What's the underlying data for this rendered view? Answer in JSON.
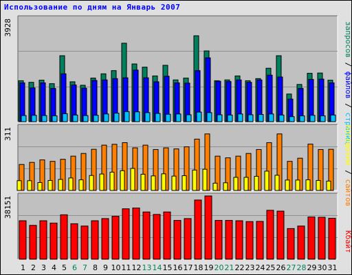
{
  "title": "Использование по дням на Январь 2007",
  "colors": {
    "background": "#e0e0e0",
    "plot": "#c0c0c0",
    "grid": "#909090",
    "hits": "#00805c",
    "files": "#0000ff",
    "pages": "#00c0ff",
    "visits": "#ff8000",
    "sites": "#ffff00",
    "kbytes": "#ff0000",
    "weekend_label": "#00805c",
    "weekday_label": "#000000"
  },
  "chart_data": [
    {
      "type": "bar",
      "categories": [
        "1",
        "2",
        "3",
        "4",
        "5",
        "6",
        "7",
        "8",
        "9",
        "10",
        "11",
        "12",
        "13",
        "14",
        "15",
        "16",
        "17",
        "18",
        "19",
        "20",
        "21",
        "22",
        "23",
        "24",
        "25",
        "26",
        "27",
        "28",
        "29",
        "30",
        "31"
      ],
      "weekend_days": [
        "6",
        "7",
        "13",
        "14",
        "20",
        "21",
        "27",
        "28"
      ],
      "ymax_label": "3928",
      "ylim": [
        0,
        3928
      ],
      "series": [
        {
          "name": "запросов",
          "values": [
            1540,
            1480,
            1560,
            1430,
            2480,
            1500,
            1370,
            1640,
            1800,
            1920,
            2950,
            2170,
            2050,
            1720,
            2120,
            1570,
            1640,
            3230,
            2660,
            1540,
            1570,
            1720,
            1540,
            1620,
            2010,
            2480,
            1040,
            1400,
            1820,
            1830,
            1560
          ]
        },
        {
          "name": "файлов",
          "values": [
            1460,
            1270,
            1460,
            1250,
            1800,
            1380,
            1260,
            1550,
            1570,
            1620,
            1650,
            1940,
            1650,
            1500,
            1710,
            1460,
            1450,
            1920,
            2400,
            1520,
            1510,
            1570,
            1480,
            1570,
            1750,
            1680,
            850,
            1250,
            1590,
            1600,
            1460
          ]
        },
        {
          "name": "страниц",
          "values": [
            230,
            240,
            230,
            220,
            300,
            250,
            230,
            240,
            290,
            320,
            380,
            370,
            340,
            310,
            280,
            290,
            260,
            360,
            340,
            260,
            250,
            290,
            260,
            270,
            290,
            250,
            190,
            220,
            240,
            220,
            250
          ]
        }
      ]
    },
    {
      "type": "bar",
      "categories": [
        "1",
        "2",
        "3",
        "4",
        "5",
        "6",
        "7",
        "8",
        "9",
        "10",
        "11",
        "12",
        "13",
        "14",
        "15",
        "16",
        "17",
        "18",
        "19",
        "20",
        "21",
        "22",
        "23",
        "24",
        "25",
        "26",
        "27",
        "28",
        "29",
        "30",
        "31"
      ],
      "ymax_label": "311",
      "ylim": [
        0,
        311
      ],
      "series": [
        {
          "name": "сайтов",
          "values": [
            125,
            135,
            147,
            140,
            150,
            165,
            178,
            198,
            218,
            222,
            230,
            205,
            218,
            197,
            205,
            200,
            210,
            247,
            272,
            165,
            157,
            165,
            178,
            197,
            230,
            272,
            140,
            155,
            223,
            197,
            198
          ]
        },
        {
          "name": "посещений",
          "values": [
            47,
            47,
            38,
            48,
            53,
            60,
            51,
            72,
            79,
            88,
            95,
            106,
            78,
            70,
            80,
            69,
            71,
            98,
            102,
            35,
            37,
            63,
            63,
            68,
            93,
            73,
            50,
            50,
            51,
            48,
            45
          ]
        }
      ]
    },
    {
      "type": "bar",
      "categories": [
        "1",
        "2",
        "3",
        "4",
        "5",
        "6",
        "7",
        "8",
        "9",
        "10",
        "11",
        "12",
        "13",
        "14",
        "15",
        "16",
        "17",
        "18",
        "19",
        "20",
        "21",
        "22",
        "23",
        "24",
        "25",
        "26",
        "27",
        "28",
        "29",
        "30",
        "31"
      ],
      "ymax_label": "38151",
      "ylim": [
        0,
        38151
      ],
      "series": [
        {
          "name": "Кбайт",
          "values": [
            23200,
            20400,
            23200,
            21800,
            26800,
            21400,
            20000,
            23200,
            24500,
            25900,
            30400,
            30900,
            28500,
            27000,
            28500,
            23400,
            24500,
            35700,
            38151,
            23400,
            23400,
            23200,
            22700,
            22800,
            29500,
            29000,
            18500,
            20000,
            25500,
            25300,
            24700
          ]
        }
      ]
    }
  ]
}
